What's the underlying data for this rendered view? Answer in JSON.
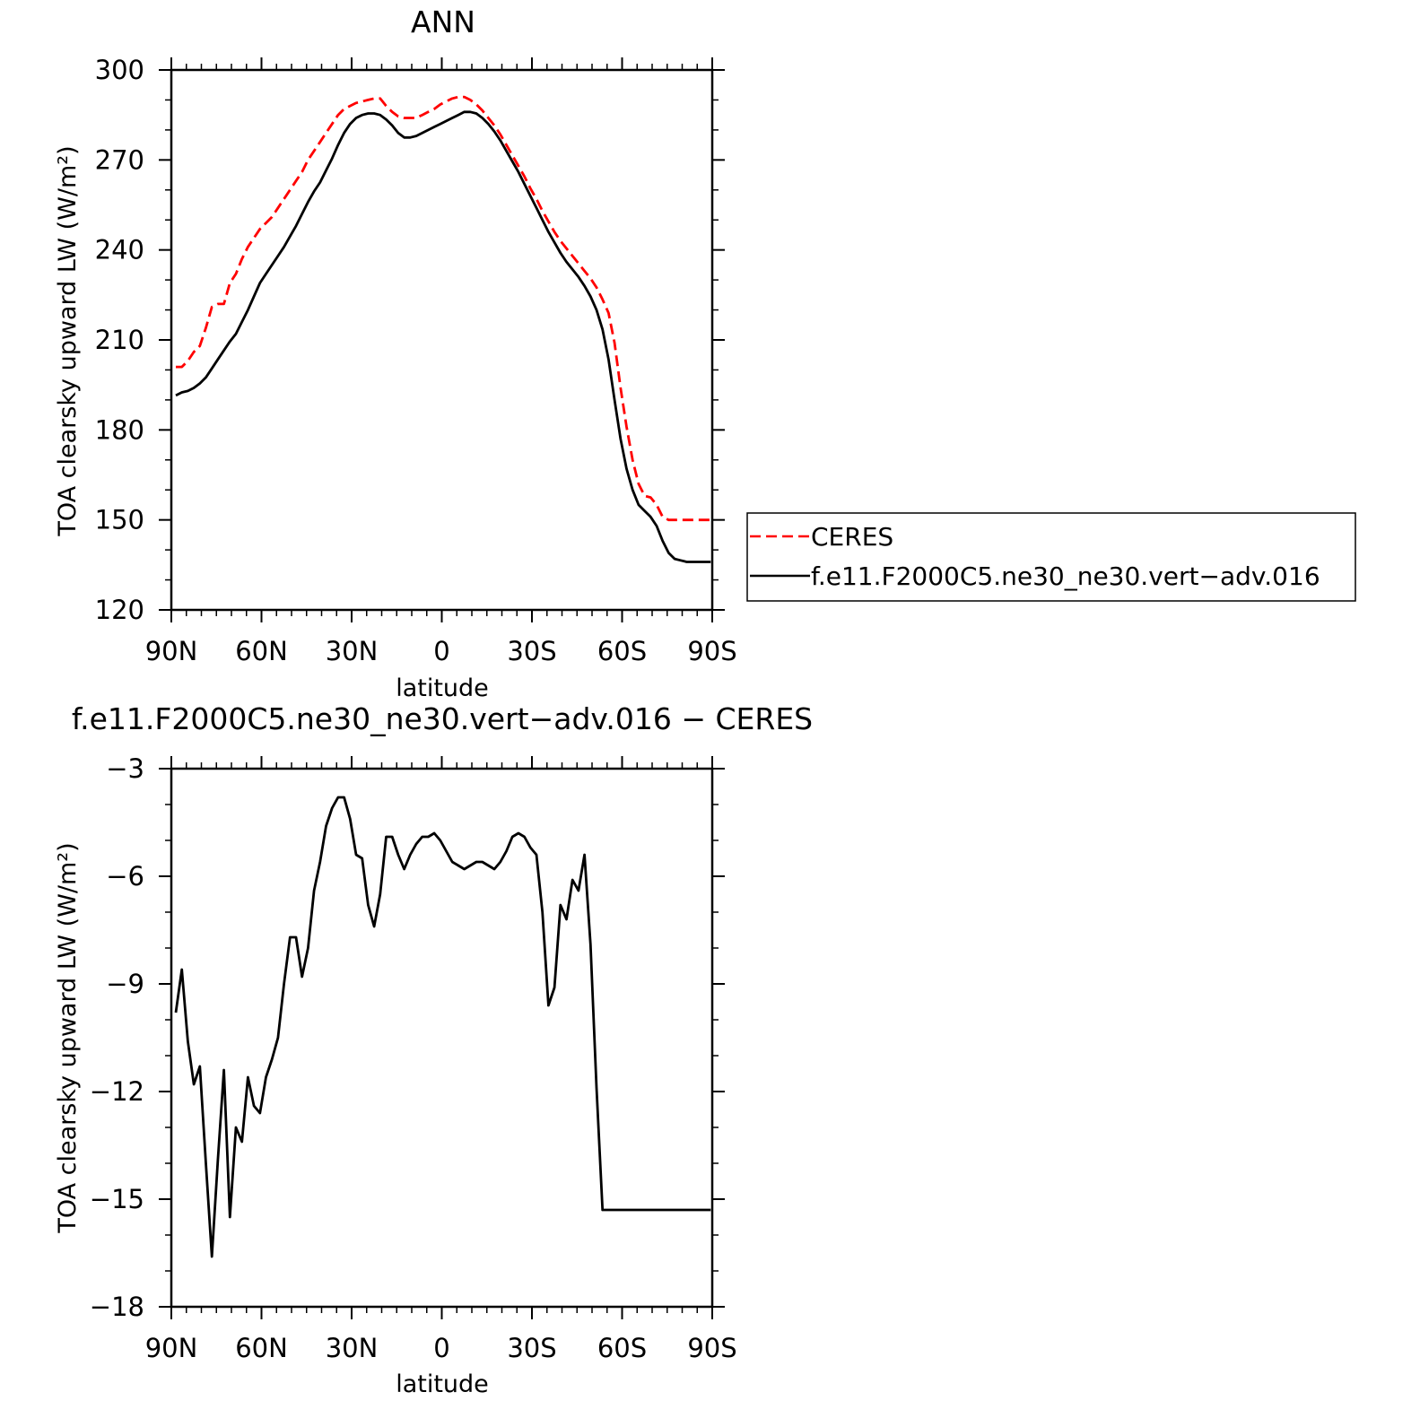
{
  "chart_data": [
    {
      "type": "line",
      "title": "ANN",
      "xlabel": "latitude",
      "ylabel": "TOA clearsky upward LW (W/m²)",
      "xlim": [
        -90,
        90
      ],
      "ylim": [
        120,
        300
      ],
      "x_direction": "90N on left, 90S on right",
      "xticks": [
        "90N",
        "60N",
        "30N",
        "0",
        "30S",
        "60S",
        "90S"
      ],
      "yticks": [
        "120",
        "150",
        "180",
        "210",
        "240",
        "270",
        "300"
      ],
      "grid": false,
      "legend_position": "right of plot",
      "series": [
        {
          "name": "CERES",
          "color": "#ff0000",
          "dash": "dashed",
          "x": [
            -88.5,
            -86.5,
            -84.5,
            -82.5,
            -80.5,
            -78.5,
            -76.5,
            -74.5,
            -72.5,
            -70.5,
            -68.5,
            -66.5,
            -64.5,
            -62.5,
            -60.5,
            -58.5,
            -56.5,
            -54.5,
            -52.5,
            -50.5,
            -48.5,
            -46.5,
            -44.5,
            -42.5,
            -40.5,
            -38.5,
            -36.5,
            -34.5,
            -32.5,
            -30.5,
            -28.5,
            -26.5,
            -24.5,
            -22.5,
            -20.5,
            -18.5,
            -16.5,
            -14.5,
            -12.5,
            -10.5,
            -8.5,
            -6.5,
            -4.5,
            -2.5,
            -0.5,
            1.5,
            3.5,
            5.5,
            7.5,
            9.5,
            11.5,
            13.5,
            15.5,
            17.5,
            19.5,
            21.5,
            23.5,
            25.5,
            27.5,
            29.5,
            31.5,
            33.5,
            35.5,
            37.5,
            39.5,
            41.5,
            43.5,
            45.5,
            47.5,
            49.5,
            51.5,
            53.5,
            55.5,
            57.5,
            59.5,
            61.5,
            63.5,
            65.5,
            67.5,
            69.5,
            71.5,
            73.5,
            75.5,
            77.5,
            79.5,
            81.5,
            83.5,
            85.5,
            87.5,
            89.5
          ],
          "y": [
            201,
            201,
            203,
            206,
            208,
            214,
            221,
            222,
            222,
            229,
            232,
            237,
            241,
            244,
            247,
            249,
            251,
            254,
            257,
            260,
            263,
            266,
            270,
            273,
            276,
            279,
            282,
            285,
            287,
            288,
            289,
            289.5,
            290,
            290.5,
            290.5,
            288,
            286,
            284.5,
            284,
            284,
            284,
            285,
            286,
            287,
            288.5,
            289.5,
            290.5,
            291,
            291,
            290,
            288.5,
            286.5,
            284,
            281.5,
            278.5,
            275,
            271.5,
            268,
            264.5,
            260.5,
            257,
            253,
            249.5,
            246,
            243,
            240.5,
            238,
            235.5,
            233,
            230.5,
            227.5,
            223.5,
            219,
            209,
            194,
            181,
            170,
            162,
            158,
            157.5,
            155,
            151,
            150,
            150,
            150,
            150,
            150,
            150,
            150,
            150
          ]
        },
        {
          "name": "f.e11.F2000C5.ne30_ne30.vert−adv.016",
          "color": "#000000",
          "dash": "solid",
          "x": [
            -88.5,
            -86.5,
            -84.5,
            -82.5,
            -80.5,
            -78.5,
            -76.5,
            -74.5,
            -72.5,
            -70.5,
            -68.5,
            -66.5,
            -64.5,
            -62.5,
            -60.5,
            -58.5,
            -56.5,
            -54.5,
            -52.5,
            -50.5,
            -48.5,
            -46.5,
            -44.5,
            -42.5,
            -40.5,
            -38.5,
            -36.5,
            -34.5,
            -32.5,
            -30.5,
            -28.5,
            -26.5,
            -24.5,
            -22.5,
            -20.5,
            -18.5,
            -16.5,
            -14.5,
            -12.5,
            -10.5,
            -8.5,
            -6.5,
            -4.5,
            -2.5,
            -0.5,
            1.5,
            3.5,
            5.5,
            7.5,
            9.5,
            11.5,
            13.5,
            15.5,
            17.5,
            19.5,
            21.5,
            23.5,
            25.5,
            27.5,
            29.5,
            31.5,
            33.5,
            35.5,
            37.5,
            39.5,
            41.5,
            43.5,
            45.5,
            47.5,
            49.5,
            51.5,
            53.5,
            55.5,
            57.5,
            59.5,
            61.5,
            63.5,
            65.5,
            67.5,
            69.5,
            71.5,
            73.5,
            75.5,
            77.5,
            79.5,
            81.5,
            83.5,
            85.5,
            87.5,
            89.5
          ],
          "y": [
            191.5,
            192.5,
            193,
            194,
            195.5,
            197.5,
            200.5,
            203.5,
            206.5,
            209.5,
            212,
            216,
            220,
            224.5,
            229,
            232,
            235,
            238,
            241,
            244.5,
            248,
            252,
            256,
            259.5,
            262.5,
            266.5,
            270.5,
            275,
            279,
            282,
            284,
            285,
            285.5,
            285.5,
            285,
            283.5,
            281.5,
            279,
            277.5,
            277.5,
            278,
            279,
            280,
            281,
            282,
            283,
            284,
            285,
            286,
            286,
            285.5,
            284,
            282,
            279.5,
            276.5,
            273,
            269.5,
            266,
            262,
            258,
            254,
            250,
            246,
            242.5,
            239,
            236,
            233.5,
            231,
            228,
            224.5,
            220,
            213.5,
            203.5,
            190,
            177,
            167,
            160,
            155,
            153,
            151,
            148,
            143,
            139,
            137,
            136.5,
            136,
            136,
            136,
            136,
            136
          ]
        }
      ]
    },
    {
      "type": "line",
      "title": "f.e11.F2000C5.ne30_ne30.vert−adv.016 − CERES",
      "xlabel": "latitude",
      "ylabel": "TOA clearsky upward LW (W/m²)",
      "xlim": [
        -90,
        90
      ],
      "ylim": [
        -18,
        -3
      ],
      "x_direction": "90N on left, 90S on right",
      "xticks": [
        "90N",
        "60N",
        "30N",
        "0",
        "30S",
        "60S",
        "90S"
      ],
      "yticks": [
        "−18",
        "−15",
        "−12",
        "−9",
        "−6",
        "−3"
      ],
      "grid": false,
      "series": [
        {
          "color": "#000000",
          "dash": "solid",
          "x": [
            -88.5,
            -86.5,
            -84.5,
            -82.5,
            -80.5,
            -78.5,
            -76.5,
            -74.5,
            -72.5,
            -70.5,
            -68.5,
            -66.5,
            -64.5,
            -62.5,
            -60.5,
            -58.5,
            -56.5,
            -54.5,
            -52.5,
            -50.5,
            -48.5,
            -46.5,
            -44.5,
            -42.5,
            -40.5,
            -38.5,
            -36.5,
            -34.5,
            -32.5,
            -30.5,
            -28.5,
            -26.5,
            -24.5,
            -22.5,
            -20.5,
            -18.5,
            -16.5,
            -14.5,
            -12.5,
            -10.5,
            -8.5,
            -6.5,
            -4.5,
            -2.5,
            -0.5,
            1.5,
            3.5,
            5.5,
            7.5,
            9.5,
            11.5,
            13.5,
            15.5,
            17.5,
            19.5,
            21.5,
            23.5,
            25.5,
            27.5,
            29.5,
            31.5,
            33.5,
            35.5,
            37.5,
            39.5,
            41.5,
            43.5,
            45.5,
            47.5,
            49.5,
            51.5,
            53.5,
            55.5,
            57.5,
            59.5,
            61.5,
            63.5,
            65.5,
            67.5,
            69.5,
            71.5,
            73.5,
            75.5,
            77.5,
            79.5,
            81.5,
            83.5,
            85.5,
            87.5,
            89.5
          ],
          "y": [
            -9.8,
            -8.6,
            -10.6,
            -11.8,
            -11.3,
            -14.0,
            -16.6,
            -13.9,
            -11.4,
            -15.5,
            -13.0,
            -13.4,
            -11.6,
            -12.4,
            -12.6,
            -11.6,
            -11.1,
            -10.5,
            -9.0,
            -7.7,
            -7.7,
            -8.8,
            -8.0,
            -6.4,
            -5.6,
            -4.6,
            -4.1,
            -3.8,
            -3.8,
            -4.4,
            -5.4,
            -5.5,
            -6.8,
            -7.4,
            -6.5,
            -4.9,
            -4.9,
            -5.4,
            -5.8,
            -5.4,
            -5.1,
            -4.9,
            -4.9,
            -4.8,
            -5.0,
            -5.3,
            -5.6,
            -5.7,
            -5.8,
            -5.7,
            -5.6,
            -5.6,
            -5.7,
            -5.8,
            -5.6,
            -5.3,
            -4.9,
            -4.8,
            -4.9,
            -5.2,
            -5.4,
            -7.0,
            -9.6,
            -9.1,
            -6.8,
            -7.2,
            -6.1,
            -6.4,
            -5.4,
            -7.9,
            -11.9,
            -15.3,
            -15.3,
            -15.3,
            -15.3,
            -15.3,
            -15.3,
            -15.3,
            -15.3,
            -15.3,
            -15.3,
            -15.3,
            -15.3,
            -15.3,
            -15.3,
            -15.3,
            -15.3,
            -15.3,
            -15.3,
            -15.3
          ]
        }
      ]
    }
  ]
}
